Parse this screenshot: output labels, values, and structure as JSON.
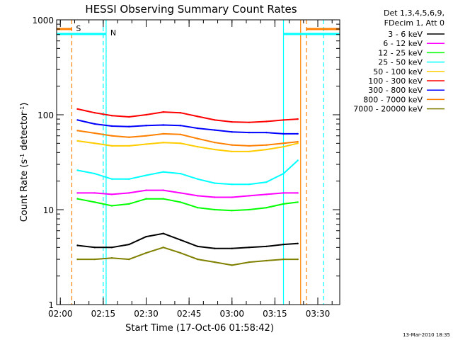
{
  "chart_data": {
    "type": "line",
    "title": "HESSI Observing Summary Count Rates",
    "xlabel": "Start Time (17-Oct-06 01:58:42)",
    "ylabel": "Count Rate (s⁻¹ detector⁻¹)",
    "ylabel_parts": [
      "Count Rate (s",
      "-1",
      " detector",
      "-1",
      ")"
    ],
    "y_scale": "log",
    "ylim": [
      1,
      1000
    ],
    "x_range": [
      "01:58:42",
      "03:37:40"
    ],
    "x_ticks": [
      "02:00",
      "02:15",
      "02:30",
      "02:45",
      "03:00",
      "03:15",
      "03:30"
    ],
    "y_ticks": [
      "1",
      "10",
      "100",
      "1000"
    ],
    "grid": false,
    "legend_position": "outside-right",
    "legend_header": [
      "Det 1,3,4,5,6,9,",
      "FDecim 1, Att 0"
    ],
    "timestamp": "13-Mar-2010 18:35",
    "flag_labels": {
      "saa": "S",
      "night": "N"
    },
    "series": [
      {
        "name": "3 - 6 keV",
        "color": "#000000",
        "x": [
          "02:06",
          "02:12",
          "02:18",
          "02:24",
          "02:30",
          "02:36",
          "02:42",
          "02:48",
          "02:54",
          "03:00",
          "03:06",
          "03:12",
          "03:18",
          "03:23"
        ],
        "y": [
          4.2,
          4.0,
          4.0,
          4.3,
          5.2,
          5.6,
          4.8,
          4.1,
          3.9,
          3.9,
          4.0,
          4.1,
          4.3,
          4.4
        ]
      },
      {
        "name": "6 - 12 keV",
        "color": "#ff00ff",
        "x": [
          "02:06",
          "02:12",
          "02:18",
          "02:24",
          "02:30",
          "02:36",
          "02:42",
          "02:48",
          "02:54",
          "03:00",
          "03:06",
          "03:12",
          "03:18",
          "03:23"
        ],
        "y": [
          15,
          15,
          14.5,
          15,
          16,
          16,
          15,
          14,
          13.5,
          13.5,
          14,
          14.5,
          15,
          15
        ]
      },
      {
        "name": "12 - 25 keV",
        "color": "#00ff00",
        "x": [
          "02:06",
          "02:12",
          "02:18",
          "02:24",
          "02:30",
          "02:36",
          "02:42",
          "02:48",
          "02:54",
          "03:00",
          "03:06",
          "03:12",
          "03:18",
          "03:23"
        ],
        "y": [
          13,
          12,
          11,
          11.5,
          13,
          13,
          12,
          10.5,
          10,
          9.8,
          10,
          10.5,
          11.5,
          12
        ]
      },
      {
        "name": "25 - 50 keV",
        "color": "#00ffff",
        "x": [
          "02:06",
          "02:12",
          "02:18",
          "02:24",
          "02:30",
          "02:36",
          "02:42",
          "02:48",
          "02:54",
          "03:00",
          "03:06",
          "03:12",
          "03:18",
          "03:23"
        ],
        "y": [
          26,
          24,
          21,
          21,
          23,
          25,
          24,
          21,
          19,
          18.5,
          18.5,
          19.5,
          24,
          33
        ]
      },
      {
        "name": "50 - 100 keV",
        "color": "#ffcc00",
        "x": [
          "02:06",
          "02:12",
          "02:18",
          "02:24",
          "02:30",
          "02:36",
          "02:42",
          "02:48",
          "02:54",
          "03:00",
          "03:06",
          "03:12",
          "03:18",
          "03:23"
        ],
        "y": [
          53,
          50,
          47,
          47,
          49,
          51,
          50,
          46,
          43,
          41,
          41,
          43,
          46,
          50
        ]
      },
      {
        "name": "100 - 300 keV",
        "color": "#ff0000",
        "x": [
          "02:06",
          "02:12",
          "02:18",
          "02:24",
          "02:30",
          "02:36",
          "02:42",
          "02:48",
          "02:54",
          "03:00",
          "03:06",
          "03:12",
          "03:18",
          "03:23"
        ],
        "y": [
          115,
          105,
          98,
          95,
          100,
          107,
          105,
          96,
          88,
          84,
          83,
          85,
          88,
          90
        ]
      },
      {
        "name": "300 - 800 keV",
        "color": "#0000ff",
        "x": [
          "02:06",
          "02:12",
          "02:18",
          "02:24",
          "02:30",
          "02:36",
          "02:42",
          "02:48",
          "02:54",
          "03:00",
          "03:06",
          "03:12",
          "03:18",
          "03:23"
        ],
        "y": [
          88,
          80,
          76,
          75,
          77,
          78,
          77,
          72,
          69,
          66,
          65,
          65,
          63,
          63
        ]
      },
      {
        "name": "800 - 7000 keV",
        "color": "#ff8000",
        "x": [
          "02:06",
          "02:12",
          "02:18",
          "02:24",
          "02:30",
          "02:36",
          "02:42",
          "02:48",
          "02:54",
          "03:00",
          "03:06",
          "03:12",
          "03:18",
          "03:23"
        ],
        "y": [
          68,
          64,
          60,
          58,
          60,
          63,
          62,
          56,
          51,
          48,
          47,
          48,
          50,
          52
        ]
      },
      {
        "name": "7000 - 20000 keV",
        "color": "#808000",
        "x": [
          "02:06",
          "02:12",
          "02:18",
          "02:24",
          "02:30",
          "02:36",
          "02:42",
          "02:48",
          "02:54",
          "03:00",
          "03:06",
          "03:12",
          "03:18",
          "03:23"
        ],
        "y": [
          3.0,
          3.0,
          3.1,
          3.0,
          3.5,
          4.0,
          3.5,
          3.0,
          2.8,
          2.6,
          2.8,
          2.9,
          3.0,
          3.0
        ]
      }
    ],
    "vertical_markers": [
      {
        "x": "02:04",
        "color": "#ff8000",
        "style": "dashed"
      },
      {
        "x": "02:15",
        "color": "#00ffff",
        "style": "dashed"
      },
      {
        "x": "02:16",
        "color": "#00ffff",
        "style": "solid"
      },
      {
        "x": "03:18",
        "color": "#00ffff",
        "style": "solid"
      },
      {
        "x": "03:24",
        "color": "#ff8000",
        "style": "solid"
      },
      {
        "x": "03:26",
        "color": "#ff8000",
        "style": "dashed"
      },
      {
        "x": "03:32",
        "color": "#00ffff",
        "style": "dashed"
      }
    ]
  }
}
